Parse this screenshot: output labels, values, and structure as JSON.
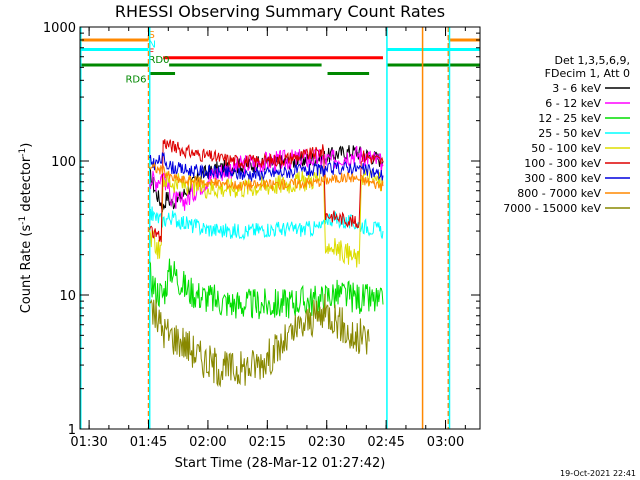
{
  "chart_data": {
    "type": "line",
    "title": "RHESSI Observing Summary Count Rates",
    "xlabel": "Start Time (28-Mar-12 01:27:42)",
    "ylabel_main": "Count Rate (s",
    "ylabel_sup1": "-1",
    "ylabel_mid": " detector",
    "ylabel_sup2": "-1",
    "ylabel_end": ")",
    "x_unit": "minutes since 01:27:42",
    "xlim": [
      0,
      101
    ],
    "ylim": [
      1,
      1000
    ],
    "yscale": "log",
    "x_ticks": [
      {
        "value": 2.3,
        "label": "01:30"
      },
      {
        "value": 17.3,
        "label": "01:45"
      },
      {
        "value": 32.3,
        "label": "02:00"
      },
      {
        "value": 47.3,
        "label": "02:15"
      },
      {
        "value": 62.3,
        "label": "02:30"
      },
      {
        "value": 77.3,
        "label": "02:45"
      },
      {
        "value": 92.3,
        "label": "03:00"
      }
    ],
    "y_ticks": [
      {
        "value": 1,
        "label": "1"
      },
      {
        "value": 10,
        "label": "10"
      },
      {
        "value": 100,
        "label": "100"
      },
      {
        "value": 1000,
        "label": "1000"
      }
    ],
    "legend": {
      "header1": "Det 1,3,5,6,9,",
      "header2": "FDecim 1, Att 0",
      "entries": [
        {
          "label": "3 - 6 keV",
          "color": "#000000"
        },
        {
          "label": "6 - 12 keV",
          "color": "#ff00ff"
        },
        {
          "label": "12 - 25 keV",
          "color": "#00dd00"
        },
        {
          "label": "25 - 50 keV",
          "color": "#00ffff"
        },
        {
          "label": "50 - 100 keV",
          "color": "#dddd00"
        },
        {
          "label": "100 - 300 keV",
          "color": "#dd0000"
        },
        {
          "label": "300 - 800 keV",
          "color": "#0000dd"
        },
        {
          "label": "800 - 7000 keV",
          "color": "#ff8800"
        },
        {
          "label": "7000 - 15000 keV",
          "color": "#888800"
        }
      ]
    },
    "series": [
      {
        "name": "3 - 6 keV",
        "color": "#000000",
        "x": [
          17.6,
          19,
          21,
          22,
          23,
          25,
          28,
          31,
          35,
          40,
          45,
          50,
          55,
          60,
          63,
          66,
          69,
          72,
          75,
          76.5
        ],
        "y": [
          80,
          60,
          45,
          55,
          48,
          52,
          65,
          80,
          88,
          92,
          95,
          98,
          100,
          105,
          110,
          115,
          118,
          112,
          105,
          100
        ]
      },
      {
        "name": "6 - 12 keV",
        "color": "#ff00ff",
        "x": [
          17.6,
          19,
          21,
          23,
          25,
          27,
          30,
          34,
          38,
          42,
          46,
          50,
          55,
          60,
          63,
          66,
          69,
          72,
          75,
          76.5
        ],
        "y": [
          75,
          70,
          80,
          55,
          48,
          52,
          65,
          80,
          88,
          95,
          98,
          100,
          103,
          105,
          100,
          108,
          112,
          110,
          100,
          92
        ]
      },
      {
        "name": "12 - 25 keV",
        "color": "#00dd00",
        "x": [
          17.6,
          19,
          21,
          23,
          25,
          27,
          30,
          35,
          40,
          45,
          50,
          55,
          60,
          62,
          63,
          66,
          70,
          74,
          76.5
        ],
        "y": [
          14,
          11,
          10,
          16,
          13,
          11,
          10,
          9,
          8.5,
          8.5,
          8.5,
          9,
          9,
          9.5,
          10,
          10,
          9.5,
          9,
          8.5
        ]
      },
      {
        "name": "25 - 50 keV",
        "color": "#00ffff",
        "x": [
          17.6,
          19,
          21,
          23,
          25,
          28,
          32,
          37,
          42,
          47,
          52,
          57,
          61.5,
          62,
          64,
          67,
          70,
          73,
          76.5
        ],
        "y": [
          42,
          38,
          36,
          38,
          36,
          33,
          31,
          30,
          30,
          31,
          31,
          31,
          32,
          38,
          37,
          35,
          34,
          32,
          30
        ]
      },
      {
        "name": "50 - 100 keV",
        "color": "#dddd00",
        "x": [
          17.6,
          19,
          20.5,
          21,
          23,
          25,
          28,
          33,
          38,
          43,
          48,
          53,
          58,
          61.5,
          62,
          65,
          68,
          70.5,
          71,
          76.5
        ],
        "y": [
          28,
          24,
          20,
          75,
          70,
          68,
          65,
          63,
          63,
          64,
          66,
          68,
          72,
          78,
          24,
          22,
          20,
          18,
          80,
          68
        ]
      },
      {
        "name": "100 - 300 keV",
        "color": "#dd0000",
        "x": [
          17.6,
          19,
          20.5,
          21,
          23,
          26,
          30,
          35,
          40,
          45,
          50,
          55,
          60,
          61.5,
          62,
          65,
          68,
          70.5,
          71,
          74,
          76.5
        ],
        "y": [
          32,
          28,
          26,
          140,
          130,
          120,
          112,
          105,
          100,
          100,
          102,
          108,
          115,
          120,
          40,
          38,
          36,
          34,
          110,
          105,
          98
        ]
      },
      {
        "name": "300 - 800 keV",
        "color": "#0000dd",
        "x": [
          17.6,
          19,
          21,
          23,
          26,
          30,
          35,
          40,
          45,
          50,
          55,
          60,
          62,
          65,
          68,
          70,
          73,
          76.5
        ],
        "y": [
          100,
          95,
          105,
          90,
          86,
          84,
          82,
          80,
          80,
          82,
          84,
          85,
          86,
          88,
          90,
          88,
          84,
          78
        ]
      },
      {
        "name": "800 - 7000 keV",
        "color": "#ff8800",
        "x": [
          17.6,
          19,
          21,
          23,
          26,
          30,
          35,
          40,
          45,
          50,
          55,
          60,
          62,
          65,
          68,
          70,
          73,
          76.5
        ],
        "y": [
          92,
          88,
          85,
          75,
          72,
          70,
          68,
          66,
          66,
          67,
          68,
          70,
          72,
          74,
          76,
          74,
          70,
          65
        ]
      },
      {
        "name": "7000 - 15000 keV",
        "color": "#888800",
        "x": [
          17.6,
          19,
          21,
          23,
          26,
          28,
          30,
          32,
          34,
          36,
          40,
          44,
          48,
          52,
          55,
          58,
          61,
          62,
          64,
          66,
          68,
          70,
          71,
          73
        ],
        "y": [
          9,
          7,
          5.5,
          5,
          4.5,
          4,
          3.5,
          3.2,
          3,
          2.8,
          2.8,
          3,
          3.5,
          4.5,
          5.5,
          6.5,
          7,
          7.5,
          7,
          6,
          5,
          4.5,
          5,
          4.5
        ]
      }
    ],
    "state_bars": {
      "S": {
        "label": "S",
        "color": "#ff8800",
        "value": 800,
        "segments": [
          [
            0,
            17.3
          ],
          [
            93,
            101
          ]
        ]
      },
      "N": {
        "label": "N",
        "color": "#00ffff",
        "value": 680,
        "segments": [
          [
            0,
            17.3
          ],
          [
            77.5,
            101
          ]
        ]
      },
      "F": {
        "label": "F",
        "color": "#ff0000",
        "value": 590,
        "segments": [
          [
            21,
            76.5
          ]
        ]
      },
      "RD0": {
        "label": "RD0",
        "color": "#008800",
        "value": 520,
        "segments": [
          [
            0,
            17.3
          ],
          [
            22.5,
            61
          ],
          [
            77.5,
            101
          ]
        ]
      },
      "RD6": {
        "label": "RD6",
        "color": "#008800",
        "value": 450,
        "segments": [
          [
            17.8,
            24
          ],
          [
            62.5,
            73
          ]
        ]
      }
    },
    "vertical_markers": [
      {
        "x": 0.2,
        "color": "#00ffff",
        "style": "solid"
      },
      {
        "x": 17.3,
        "color": "#ff8800",
        "style": "dashed"
      },
      {
        "x": 17.6,
        "color": "#00ffff",
        "style": "solid"
      },
      {
        "x": 77.5,
        "color": "#00ffff",
        "style": "solid"
      },
      {
        "x": 86.5,
        "color": "#ff8800",
        "style": "solid"
      },
      {
        "x": 93,
        "color": "#ff8800",
        "style": "dashed"
      },
      {
        "x": 93.3,
        "color": "#00ffff",
        "style": "solid"
      }
    ],
    "footer_date": "19-Oct-2021 22:41"
  }
}
